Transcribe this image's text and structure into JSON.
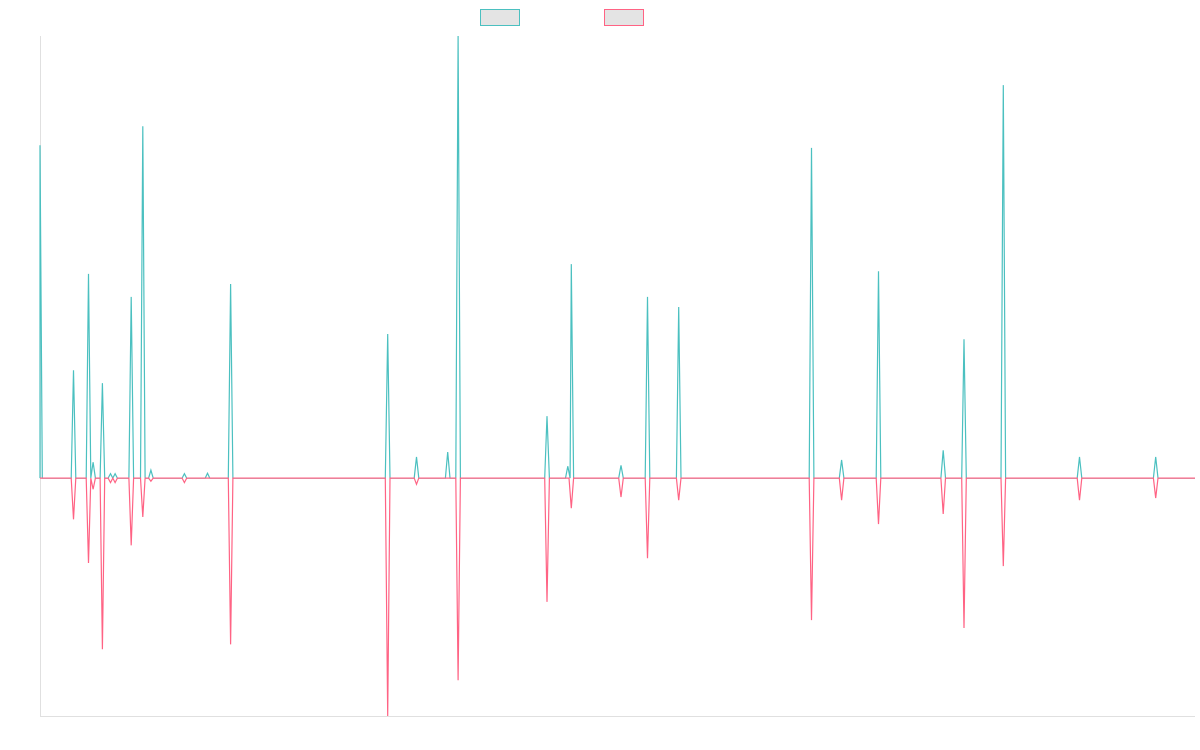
{
  "chart_data": {
    "type": "line",
    "title": "",
    "xlabel": "",
    "ylabel": "",
    "xlim": [
      0,
      1000
    ],
    "ylim": [
      -53.8,
      100
    ],
    "grid": false,
    "legend_position": "top-center",
    "spike_half_width": 2,
    "series": [
      {
        "name": "",
        "color": "#4bc0c0",
        "spikes": [
          [
            0,
            75.3
          ],
          [
            29,
            24.4
          ],
          [
            42,
            46.2
          ],
          [
            46,
            3.6
          ],
          [
            54,
            21.5
          ],
          [
            61,
            1
          ],
          [
            65,
            1
          ],
          [
            79,
            41
          ],
          [
            89,
            79.6
          ],
          [
            96,
            1.8
          ],
          [
            125,
            1
          ],
          [
            145,
            1.1
          ],
          [
            165,
            43.9
          ],
          [
            301,
            32.6
          ],
          [
            326,
            4.8
          ],
          [
            353,
            5.9
          ],
          [
            362,
            100
          ],
          [
            439,
            14
          ],
          [
            457,
            2.7
          ],
          [
            460,
            48.4
          ],
          [
            503,
            2.9
          ],
          [
            526,
            41
          ],
          [
            553,
            38.7
          ],
          [
            668,
            74.7
          ],
          [
            694,
            4.1
          ],
          [
            726,
            46.8
          ],
          [
            782,
            6.3
          ],
          [
            800,
            31.4
          ],
          [
            834,
            88.9
          ],
          [
            900,
            4.8
          ],
          [
            966,
            4.8
          ]
        ]
      },
      {
        "name": "",
        "color": "#ff6384",
        "spikes": [
          [
            29,
            -9.3
          ],
          [
            42,
            -19.2
          ],
          [
            46,
            -2.5
          ],
          [
            54,
            -38.7
          ],
          [
            61,
            -1
          ],
          [
            65,
            -1
          ],
          [
            79,
            -15.2
          ],
          [
            89,
            -8.8
          ],
          [
            96,
            -0.7
          ],
          [
            125,
            -1
          ],
          [
            165,
            -37.6
          ],
          [
            301,
            -53.8
          ],
          [
            326,
            -1.4
          ],
          [
            362,
            -45.7
          ],
          [
            439,
            -28
          ],
          [
            460,
            -6.8
          ],
          [
            503,
            -4.3
          ],
          [
            526,
            -18.1
          ],
          [
            553,
            -5
          ],
          [
            668,
            -32.1
          ],
          [
            694,
            -5
          ],
          [
            726,
            -10.4
          ],
          [
            782,
            -8.1
          ],
          [
            800,
            -33.9
          ],
          [
            834,
            -19.9
          ],
          [
            900,
            -5
          ],
          [
            966,
            -4.5
          ]
        ]
      }
    ]
  }
}
